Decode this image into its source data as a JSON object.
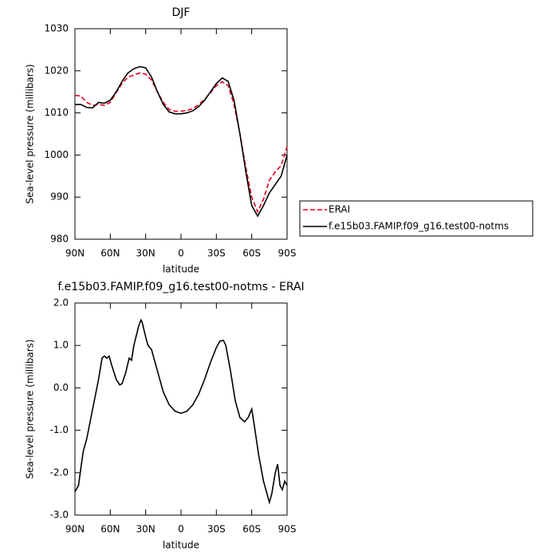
{
  "chart_data": [
    {
      "type": "line",
      "title": "DJF",
      "xlabel": "latitude",
      "ylabel": "Sea-level pressure (millibars)",
      "x": [
        90,
        85,
        80,
        75,
        70,
        65,
        60,
        55,
        50,
        45,
        40,
        35,
        30,
        25,
        20,
        15,
        10,
        5,
        0,
        -5,
        -10,
        -15,
        -20,
        -25,
        -30,
        -35,
        -40,
        -45,
        -50,
        -55,
        -60,
        -65,
        -70,
        -75,
        -80,
        -85,
        -90
      ],
      "series": [
        {
          "name": "ERAI",
          "color": "#e8001c",
          "line_style": "dashed",
          "values": [
            1014.2,
            1014,
            1012.5,
            1011.8,
            1012,
            1011.8,
            1012.5,
            1014.8,
            1017,
            1018.5,
            1019,
            1019.5,
            1019.2,
            1017.8,
            1015,
            1012.5,
            1010.8,
            1010.4,
            1010.4,
            1010.6,
            1011,
            1012,
            1013.2,
            1014.8,
            1016.5,
            1017.4,
            1016.5,
            1012,
            1005,
            997,
            990,
            986.5,
            989.5,
            994,
            996,
            997.5,
            1002
          ]
        },
        {
          "name": "f.e15b03.FAMIP.f09_g16.test00-notms",
          "color": "#000000",
          "line_style": "solid",
          "values": [
            1012,
            1012,
            1011.3,
            1011.2,
            1012.5,
            1012.3,
            1013,
            1015,
            1017.5,
            1019.5,
            1020.5,
            1021,
            1020.7,
            1018.5,
            1015,
            1012,
            1010.2,
            1009.8,
            1009.8,
            1010,
            1010.5,
            1011.5,
            1013,
            1015,
            1017,
            1018.3,
            1017.5,
            1013,
            1005,
            996,
            988,
            985.5,
            988,
            991,
            993,
            995,
            1000
          ]
        }
      ],
      "xlim": [
        90,
        -90
      ],
      "xticks": [
        {
          "value": 90,
          "label": "90N"
        },
        {
          "value": 60,
          "label": "60N"
        },
        {
          "value": 30,
          "label": "30N"
        },
        0,
        {
          "value": -30,
          "label": "30S"
        },
        {
          "value": -60,
          "label": "60S"
        },
        {
          "value": -90,
          "label": "90S"
        }
      ],
      "ylim": [
        980,
        1030
      ],
      "yticks": [
        980,
        990,
        1000,
        1010,
        1020,
        1030
      ],
      "legend": "right"
    },
    {
      "type": "line",
      "title": "f.e15b03.FAMIP.f09_g16.test00-notms - ERAI",
      "xlabel": "latitude",
      "ylabel": "Sea-level pressure (millibars)",
      "x": [
        90,
        87,
        83,
        80,
        75,
        70,
        67,
        65,
        63,
        61,
        59,
        55,
        52,
        50,
        47,
        44,
        42,
        40,
        36,
        34,
        33,
        30,
        28,
        25,
        20,
        15,
        10,
        5,
        0,
        -5,
        -10,
        -15,
        -20,
        -25,
        -30,
        -33,
        -36,
        -38,
        -42,
        -46,
        -50,
        -54,
        -57,
        -60,
        -62,
        -66,
        -70,
        -73,
        -75,
        -77,
        -80,
        -82,
        -84,
        -86,
        -88,
        -90
      ],
      "values": [
        -2.45,
        -2.3,
        -1.5,
        -1.2,
        -0.5,
        0.2,
        0.7,
        0.75,
        0.7,
        0.75,
        0.55,
        0.2,
        0.07,
        0.1,
        0.35,
        0.7,
        0.65,
        1.0,
        1.45,
        1.6,
        1.55,
        1.2,
        1.0,
        0.9,
        0.4,
        -0.1,
        -0.4,
        -0.55,
        -0.6,
        -0.55,
        -0.4,
        -0.15,
        0.2,
        0.6,
        0.95,
        1.1,
        1.12,
        1.0,
        0.4,
        -0.3,
        -0.7,
        -0.8,
        -0.7,
        -0.5,
        -0.85,
        -1.6,
        -2.2,
        -2.5,
        -2.7,
        -2.5,
        -2.0,
        -1.8,
        -2.3,
        -2.4,
        -2.2,
        -2.3
      ],
      "color": "#000000",
      "xlim": [
        90,
        -90
      ],
      "xticks": [
        {
          "value": 90,
          "label": "90N"
        },
        {
          "value": 60,
          "label": "60N"
        },
        {
          "value": 30,
          "label": "30N"
        },
        0,
        {
          "value": -30,
          "label": "30S"
        },
        {
          "value": -60,
          "label": "60S"
        },
        {
          "value": -90,
          "label": "90S"
        }
      ],
      "ylim": [
        -3,
        2
      ],
      "yticks": [
        {
          "value": 2,
          "label": "2.0"
        },
        {
          "value": 1,
          "label": "1.0"
        },
        {
          "value": 0,
          "label": "0.0"
        },
        {
          "value": -1,
          "label": "-1.0"
        },
        {
          "value": -2,
          "label": "-2.0"
        },
        {
          "value": -3,
          "label": "-3.0"
        }
      ]
    }
  ]
}
